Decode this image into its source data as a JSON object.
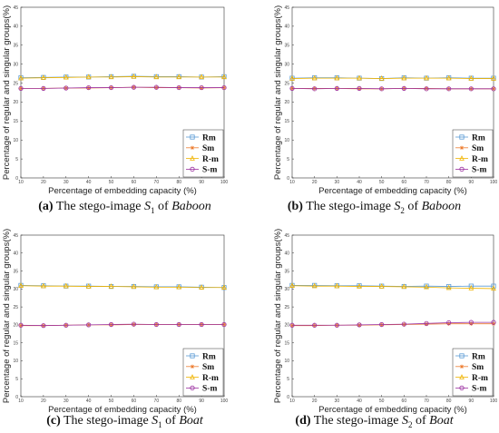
{
  "chart_data": [
    {
      "type": "line",
      "caption": {
        "letter": "(a)",
        "prefix": "The stego-image ",
        "sym": "S",
        "sub": "1",
        "mid": " of ",
        "target": "Baboon"
      },
      "xlabel": "Percentage of embedding capacity (%)",
      "ylabel": "Percentage of regular and singular groups(%)",
      "xlim": [
        10,
        100
      ],
      "ylim": [
        0,
        45
      ],
      "x_ticks": [
        10,
        20,
        30,
        40,
        50,
        60,
        70,
        80,
        90,
        100
      ],
      "y_ticks": [
        0,
        5,
        10,
        15,
        20,
        25,
        30,
        35,
        40,
        45
      ],
      "legend_position": "bottom-right",
      "grid": false,
      "x": [
        10,
        20,
        30,
        40,
        50,
        60,
        70,
        80,
        90,
        100
      ],
      "series": [
        {
          "name": "Rm",
          "color": "#5b9bd5",
          "marker": "square",
          "values": [
            26.4,
            26.5,
            26.6,
            26.6,
            26.7,
            26.8,
            26.7,
            26.7,
            26.6,
            26.7
          ]
        },
        {
          "name": "Sm",
          "color": "#ed7d31",
          "marker": "star",
          "values": [
            23.6,
            23.6,
            23.7,
            23.7,
            23.8,
            23.9,
            23.8,
            23.8,
            23.7,
            23.8
          ]
        },
        {
          "name": "R-m",
          "color": "#f0b400",
          "marker": "triangle",
          "values": [
            26.3,
            26.4,
            26.5,
            26.6,
            26.6,
            26.7,
            26.6,
            26.6,
            26.6,
            26.6
          ]
        },
        {
          "name": "S-m",
          "color": "#9b30a0",
          "marker": "circle",
          "values": [
            23.6,
            23.6,
            23.7,
            23.8,
            23.8,
            23.9,
            23.9,
            23.8,
            23.8,
            23.8
          ]
        }
      ]
    },
    {
      "type": "line",
      "caption": {
        "letter": "(b)",
        "prefix": "The stego-image ",
        "sym": "S",
        "sub": "2",
        "mid": " of ",
        "target": "Baboon"
      },
      "xlabel": "Percentage of embedding capacity (%)",
      "ylabel": "Percentage of regular and singular groups(%)",
      "xlim": [
        10,
        100
      ],
      "ylim": [
        0,
        45
      ],
      "x_ticks": [
        10,
        20,
        30,
        40,
        50,
        60,
        70,
        80,
        90,
        100
      ],
      "y_ticks": [
        0,
        5,
        10,
        15,
        20,
        25,
        30,
        35,
        40,
        45
      ],
      "legend_position": "bottom-right",
      "grid": false,
      "x": [
        10,
        20,
        30,
        40,
        50,
        60,
        70,
        80,
        90,
        100
      ],
      "series": [
        {
          "name": "Rm",
          "color": "#5b9bd5",
          "marker": "square",
          "values": [
            26.3,
            26.4,
            26.4,
            26.3,
            26.2,
            26.4,
            26.3,
            26.4,
            26.3,
            26.3
          ]
        },
        {
          "name": "Sm",
          "color": "#ed7d31",
          "marker": "star",
          "values": [
            23.6,
            23.6,
            23.6,
            23.5,
            23.5,
            23.6,
            23.6,
            23.5,
            23.5,
            23.5
          ]
        },
        {
          "name": "R-m",
          "color": "#f0b400",
          "marker": "triangle",
          "values": [
            26.2,
            26.3,
            26.3,
            26.3,
            26.2,
            26.3,
            26.3,
            26.3,
            26.2,
            26.2
          ]
        },
        {
          "name": "S-m",
          "color": "#9b30a0",
          "marker": "circle",
          "values": [
            23.6,
            23.5,
            23.6,
            23.6,
            23.5,
            23.6,
            23.5,
            23.5,
            23.5,
            23.5
          ]
        }
      ]
    },
    {
      "type": "line",
      "caption": {
        "letter": "(c)",
        "prefix": "The stego-image ",
        "sym": "S",
        "sub": "1",
        "mid": " of ",
        "target": "Boat"
      },
      "xlabel": "Percentage of embedding capacity (%)",
      "ylabel": "Percentage of regular and singular groups(%)",
      "xlim": [
        10,
        100
      ],
      "ylim": [
        0,
        45
      ],
      "x_ticks": [
        10,
        20,
        30,
        40,
        50,
        60,
        70,
        80,
        90,
        100
      ],
      "y_ticks": [
        0,
        5,
        10,
        15,
        20,
        25,
        30,
        35,
        40,
        45
      ],
      "legend_position": "bottom-right",
      "grid": false,
      "x": [
        10,
        20,
        30,
        40,
        50,
        60,
        70,
        80,
        90,
        100
      ],
      "series": [
        {
          "name": "Rm",
          "color": "#5b9bd5",
          "marker": "square",
          "values": [
            31.0,
            30.9,
            30.8,
            30.8,
            30.7,
            30.7,
            30.6,
            30.6,
            30.5,
            30.4
          ]
        },
        {
          "name": "Sm",
          "color": "#ed7d31",
          "marker": "star",
          "values": [
            19.8,
            19.8,
            19.9,
            20.0,
            20.0,
            20.1,
            20.1,
            20.1,
            20.1,
            20.1
          ]
        },
        {
          "name": "R-m",
          "color": "#f0b400",
          "marker": "triangle",
          "values": [
            30.9,
            30.8,
            30.8,
            30.7,
            30.7,
            30.6,
            30.5,
            30.5,
            30.4,
            30.4
          ]
        },
        {
          "name": "S-m",
          "color": "#9b30a0",
          "marker": "circle",
          "values": [
            19.9,
            19.8,
            19.9,
            20.0,
            20.1,
            20.2,
            20.1,
            20.1,
            20.1,
            20.1
          ]
        }
      ]
    },
    {
      "type": "line",
      "caption": {
        "letter": "(d)",
        "prefix": "The stego-image ",
        "sym": "S",
        "sub": "2",
        "mid": " of ",
        "target": "Boat"
      },
      "xlabel": "Percentage of embedding capacity (%)",
      "ylabel": "Percentage of regular and singular groups(%)",
      "xlim": [
        10,
        100
      ],
      "ylim": [
        0,
        45
      ],
      "x_ticks": [
        10,
        20,
        30,
        40,
        50,
        60,
        70,
        80,
        90,
        100
      ],
      "y_ticks": [
        0,
        5,
        10,
        15,
        20,
        25,
        30,
        35,
        40,
        45
      ],
      "legend_position": "bottom-right",
      "grid": false,
      "x": [
        10,
        20,
        30,
        40,
        50,
        60,
        70,
        80,
        90,
        100
      ],
      "series": [
        {
          "name": "Rm",
          "color": "#5b9bd5",
          "marker": "square",
          "values": [
            31.0,
            31.0,
            30.9,
            30.9,
            30.8,
            30.7,
            30.8,
            30.7,
            30.8,
            30.8
          ]
        },
        {
          "name": "Sm",
          "color": "#ed7d31",
          "marker": "star",
          "values": [
            19.8,
            19.8,
            19.9,
            19.9,
            20.0,
            20.1,
            20.2,
            20.3,
            20.3,
            20.3
          ]
        },
        {
          "name": "R-m",
          "color": "#f0b400",
          "marker": "triangle",
          "values": [
            30.9,
            30.8,
            30.8,
            30.7,
            30.7,
            30.6,
            30.5,
            30.3,
            30.2,
            30.1
          ]
        },
        {
          "name": "S-m",
          "color": "#9b30a0",
          "marker": "circle",
          "values": [
            19.9,
            19.9,
            19.9,
            20.0,
            20.1,
            20.2,
            20.4,
            20.6,
            20.7,
            20.7
          ]
        }
      ]
    }
  ]
}
